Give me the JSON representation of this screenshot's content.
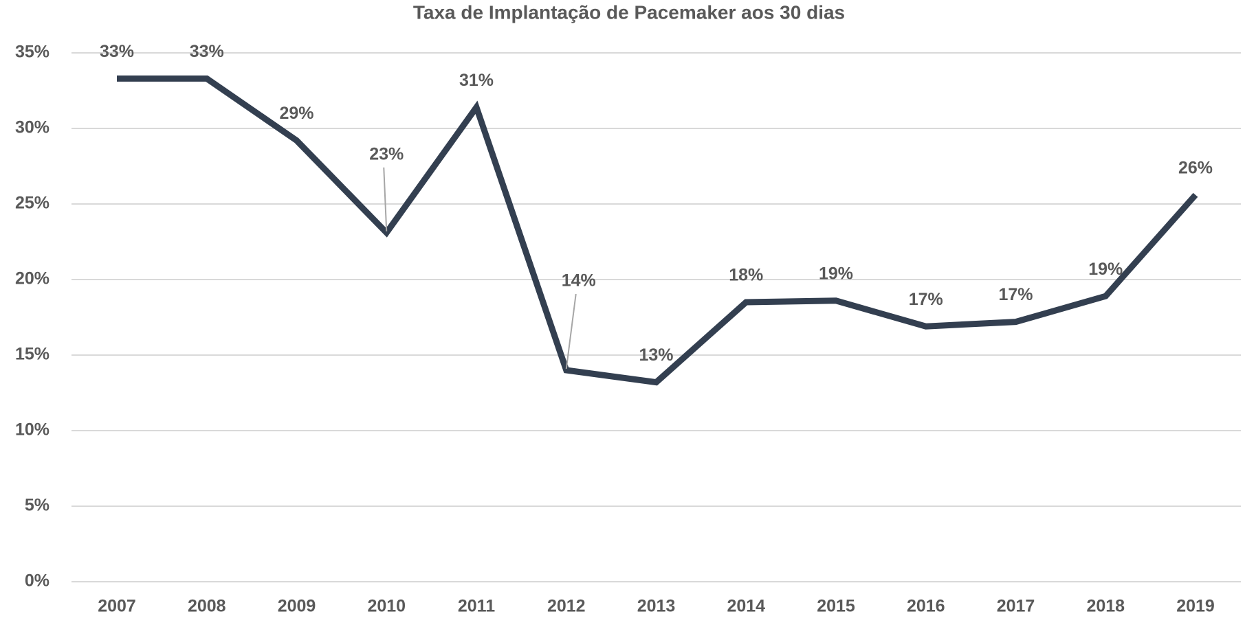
{
  "chart_data": {
    "type": "line",
    "title": "Taxa de Implantação de Pacemaker aos 30 dias",
    "categories": [
      "2007",
      "2008",
      "2009",
      "2010",
      "2011",
      "2012",
      "2013",
      "2014",
      "2015",
      "2016",
      "2017",
      "2018",
      "2019"
    ],
    "series": [
      {
        "name": "Taxa de Implantação de Pacemaker aos 30 dias",
        "color": "#333f50",
        "values": [
          33.3,
          33.3,
          29.2,
          23.1,
          31.4,
          14.0,
          13.2,
          18.5,
          18.6,
          16.9,
          17.2,
          18.9,
          25.6
        ],
        "value_labels": [
          "33%",
          "33%",
          "29%",
          "23%",
          "31%",
          "14%",
          "13%",
          "18%",
          "19%",
          "17%",
          "17%",
          "19%",
          "26%"
        ]
      }
    ],
    "ylim": [
      0,
      35
    ],
    "yticks": [
      {
        "value": 0,
        "label": "0%"
      },
      {
        "value": 5,
        "label": "5%"
      },
      {
        "value": 10,
        "label": "10%"
      },
      {
        "value": 15,
        "label": "15%"
      },
      {
        "value": 20,
        "label": "20%"
      },
      {
        "value": 25,
        "label": "25%"
      },
      {
        "value": 30,
        "label": "30%"
      },
      {
        "value": 35,
        "label": "35%"
      }
    ],
    "grid": true
  }
}
